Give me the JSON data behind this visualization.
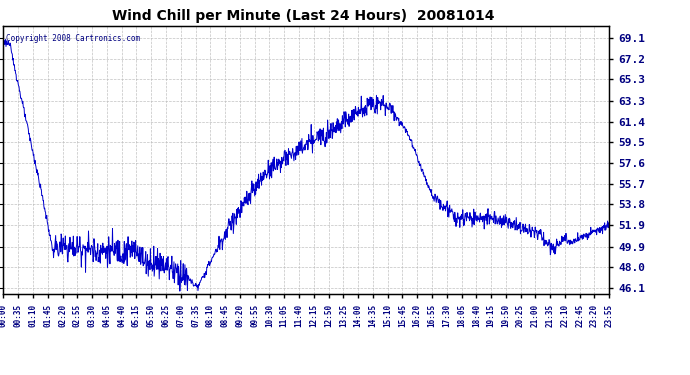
{
  "title": "Wind Chill per Minute (Last 24 Hours)  20081014",
  "copyright_text": "Copyright 2008 Cartronics.com",
  "line_color": "#0000CC",
  "background_color": "#FFFFFF",
  "grid_color": "#BBBBBB",
  "yticks": [
    46.1,
    48.0,
    49.9,
    51.9,
    53.8,
    55.7,
    57.6,
    59.5,
    61.4,
    63.3,
    65.3,
    67.2,
    69.1
  ],
  "ylim": [
    45.5,
    70.2
  ],
  "xtick_labels": [
    "00:00",
    "00:35",
    "01:10",
    "01:45",
    "02:20",
    "02:55",
    "03:30",
    "04:05",
    "04:40",
    "05:15",
    "05:50",
    "06:25",
    "07:00",
    "07:35",
    "08:10",
    "08:45",
    "09:20",
    "09:55",
    "10:30",
    "11:05",
    "11:40",
    "12:15",
    "12:50",
    "13:25",
    "14:00",
    "14:35",
    "15:10",
    "15:45",
    "16:20",
    "16:55",
    "17:30",
    "18:05",
    "18:40",
    "19:15",
    "19:50",
    "20:25",
    "21:00",
    "21:35",
    "22:10",
    "22:45",
    "23:20",
    "23:55"
  ]
}
